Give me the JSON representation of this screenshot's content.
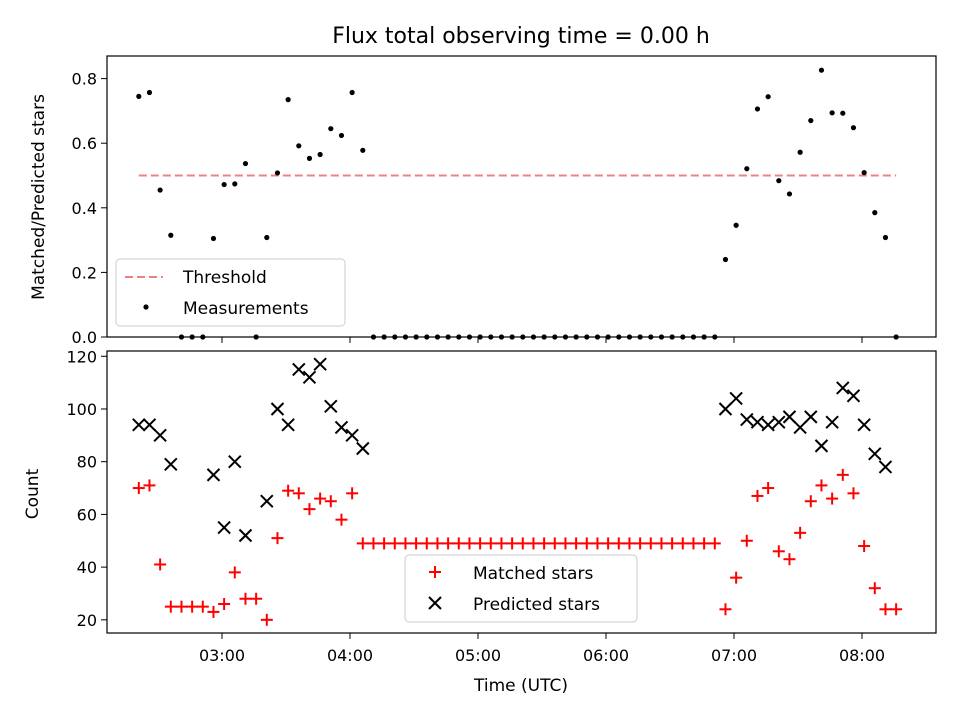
{
  "chart_data": [
    {
      "type": "scatter",
      "title": "Flux total observing time = 0.00 h",
      "xlabel": "",
      "ylabel": "Matched/Predicted stars",
      "ylim": [
        0,
        0.87
      ],
      "yticks": [
        "0.0",
        "0.2",
        "0.4",
        "0.6",
        "0.8"
      ],
      "threshold": 0.5,
      "threshold_color": "#f08080",
      "point_color": "#000000",
      "legend_position": "lower-left",
      "legend": [
        "Threshold",
        "Measurements"
      ],
      "series": [
        {
          "name": "Measurements",
          "points": [
            [
              "02:21",
              0.745
            ],
            [
              "02:26",
              0.757
            ],
            [
              "02:31",
              0.455
            ],
            [
              "02:36",
              0.315
            ],
            [
              "02:41",
              0.0
            ],
            [
              "02:46",
              0.0
            ],
            [
              "02:51",
              0.0
            ],
            [
              "02:56",
              0.305
            ],
            [
              "03:01",
              0.472
            ],
            [
              "03:06",
              0.474
            ],
            [
              "03:11",
              0.537
            ],
            [
              "03:16",
              0.0
            ],
            [
              "03:21",
              0.308
            ],
            [
              "03:26",
              0.508
            ],
            [
              "03:31",
              0.735
            ],
            [
              "03:36",
              0.592
            ],
            [
              "03:41",
              0.553
            ],
            [
              "03:46",
              0.565
            ],
            [
              "03:51",
              0.645
            ],
            [
              "03:56",
              0.624
            ],
            [
              "04:01",
              0.757
            ],
            [
              "04:06",
              0.578
            ],
            [
              "04:11",
              0.0
            ],
            [
              "04:16",
              0.0
            ],
            [
              "04:21",
              0.0
            ],
            [
              "04:26",
              0.0
            ],
            [
              "04:31",
              0.0
            ],
            [
              "04:36",
              0.0
            ],
            [
              "04:41",
              0.0
            ],
            [
              "04:46",
              0.0
            ],
            [
              "04:51",
              0.0
            ],
            [
              "04:56",
              0.0
            ],
            [
              "05:01",
              0.0
            ],
            [
              "05:06",
              0.0
            ],
            [
              "05:11",
              0.0
            ],
            [
              "05:16",
              0.0
            ],
            [
              "05:21",
              0.0
            ],
            [
              "05:26",
              0.0
            ],
            [
              "05:31",
              0.0
            ],
            [
              "05:36",
              0.0
            ],
            [
              "05:41",
              0.0
            ],
            [
              "05:46",
              0.0
            ],
            [
              "05:51",
              0.0
            ],
            [
              "05:56",
              0.0
            ],
            [
              "06:01",
              0.0
            ],
            [
              "06:06",
              0.0
            ],
            [
              "06:11",
              0.0
            ],
            [
              "06:16",
              0.0
            ],
            [
              "06:21",
              0.0
            ],
            [
              "06:26",
              0.0
            ],
            [
              "06:31",
              0.0
            ],
            [
              "06:36",
              0.0
            ],
            [
              "06:41",
              0.0
            ],
            [
              "06:46",
              0.0
            ],
            [
              "06:51",
              0.0
            ],
            [
              "06:56",
              0.24
            ],
            [
              "07:01",
              0.346
            ],
            [
              "07:06",
              0.521
            ],
            [
              "07:11",
              0.706
            ],
            [
              "07:16",
              0.744
            ],
            [
              "07:21",
              0.484
            ],
            [
              "07:26",
              0.443
            ],
            [
              "07:31",
              0.572
            ],
            [
              "07:36",
              0.67
            ],
            [
              "07:41",
              0.826
            ],
            [
              "07:46",
              0.694
            ],
            [
              "07:51",
              0.693
            ],
            [
              "07:56",
              0.648
            ],
            [
              "08:01",
              0.509
            ],
            [
              "08:06",
              0.385
            ],
            [
              "08:11",
              0.308
            ],
            [
              "08:16",
              0.0
            ]
          ]
        }
      ]
    },
    {
      "type": "scatter",
      "title": "",
      "xlabel": "Time (UTC)",
      "ylabel": "Count",
      "ylim": [
        15,
        122
      ],
      "yticks": [
        "20",
        "40",
        "60",
        "80",
        "100",
        "120"
      ],
      "xticks": [
        "03:00",
        "04:00",
        "05:00",
        "06:00",
        "07:00",
        "08:00"
      ],
      "legend_position": "lower-center",
      "legend": [
        "Matched stars",
        "Predicted stars"
      ],
      "series": [
        {
          "name": "Matched stars",
          "marker": "+",
          "color": "#ff0000",
          "points": [
            [
              "02:21",
              70
            ],
            [
              "02:26",
              71
            ],
            [
              "02:31",
              41
            ],
            [
              "02:36",
              25
            ],
            [
              "02:41",
              25
            ],
            [
              "02:46",
              25
            ],
            [
              "02:51",
              25
            ],
            [
              "02:56",
              23
            ],
            [
              "03:01",
              26
            ],
            [
              "03:06",
              38
            ],
            [
              "03:11",
              28
            ],
            [
              "03:16",
              28
            ],
            [
              "03:21",
              20
            ],
            [
              "03:26",
              51
            ],
            [
              "03:31",
              69
            ],
            [
              "03:36",
              68
            ],
            [
              "03:41",
              62
            ],
            [
              "03:46",
              66
            ],
            [
              "03:51",
              65
            ],
            [
              "03:56",
              58
            ],
            [
              "04:01",
              68
            ],
            [
              "04:06",
              49
            ],
            [
              "04:11",
              49
            ],
            [
              "04:16",
              49
            ],
            [
              "04:21",
              49
            ],
            [
              "04:26",
              49
            ],
            [
              "04:31",
              49
            ],
            [
              "04:36",
              49
            ],
            [
              "04:41",
              49
            ],
            [
              "04:46",
              49
            ],
            [
              "04:51",
              49
            ],
            [
              "04:56",
              49
            ],
            [
              "05:01",
              49
            ],
            [
              "05:06",
              49
            ],
            [
              "05:11",
              49
            ],
            [
              "05:16",
              49
            ],
            [
              "05:21",
              49
            ],
            [
              "05:26",
              49
            ],
            [
              "05:31",
              49
            ],
            [
              "05:36",
              49
            ],
            [
              "05:41",
              49
            ],
            [
              "05:46",
              49
            ],
            [
              "05:51",
              49
            ],
            [
              "05:56",
              49
            ],
            [
              "06:01",
              49
            ],
            [
              "06:06",
              49
            ],
            [
              "06:11",
              49
            ],
            [
              "06:16",
              49
            ],
            [
              "06:21",
              49
            ],
            [
              "06:26",
              49
            ],
            [
              "06:31",
              49
            ],
            [
              "06:36",
              49
            ],
            [
              "06:41",
              49
            ],
            [
              "06:46",
              49
            ],
            [
              "06:51",
              49
            ],
            [
              "06:56",
              24
            ],
            [
              "07:01",
              36
            ],
            [
              "07:06",
              50
            ],
            [
              "07:11",
              67
            ],
            [
              "07:16",
              70
            ],
            [
              "07:21",
              46
            ],
            [
              "07:26",
              43
            ],
            [
              "07:31",
              53
            ],
            [
              "07:36",
              65
            ],
            [
              "07:41",
              71
            ],
            [
              "07:46",
              66
            ],
            [
              "07:51",
              75
            ],
            [
              "07:56",
              68
            ],
            [
              "08:01",
              48
            ],
            [
              "08:06",
              32
            ],
            [
              "08:11",
              24
            ],
            [
              "08:16",
              24
            ]
          ]
        },
        {
          "name": "Predicted stars",
          "marker": "x",
          "color": "#000000",
          "points": [
            [
              "02:21",
              94
            ],
            [
              "02:26",
              94
            ],
            [
              "02:31",
              90
            ],
            [
              "02:36",
              79
            ],
            [
              "02:56",
              75
            ],
            [
              "03:01",
              55
            ],
            [
              "03:06",
              80
            ],
            [
              "03:11",
              52
            ],
            [
              "03:21",
              65
            ],
            [
              "03:26",
              100
            ],
            [
              "03:31",
              94
            ],
            [
              "03:36",
              115
            ],
            [
              "03:41",
              112
            ],
            [
              "03:46",
              117
            ],
            [
              "03:51",
              101
            ],
            [
              "03:56",
              93
            ],
            [
              "04:01",
              90
            ],
            [
              "04:06",
              85
            ],
            [
              "06:56",
              100
            ],
            [
              "07:01",
              104
            ],
            [
              "07:06",
              96
            ],
            [
              "07:11",
              95
            ],
            [
              "07:16",
              94
            ],
            [
              "07:21",
              95
            ],
            [
              "07:26",
              97
            ],
            [
              "07:31",
              93
            ],
            [
              "07:36",
              97
            ],
            [
              "07:41",
              86
            ],
            [
              "07:46",
              95
            ],
            [
              "07:51",
              108
            ],
            [
              "07:56",
              105
            ],
            [
              "08:01",
              94
            ],
            [
              "08:06",
              83
            ],
            [
              "08:11",
              78
            ]
          ]
        }
      ]
    }
  ]
}
